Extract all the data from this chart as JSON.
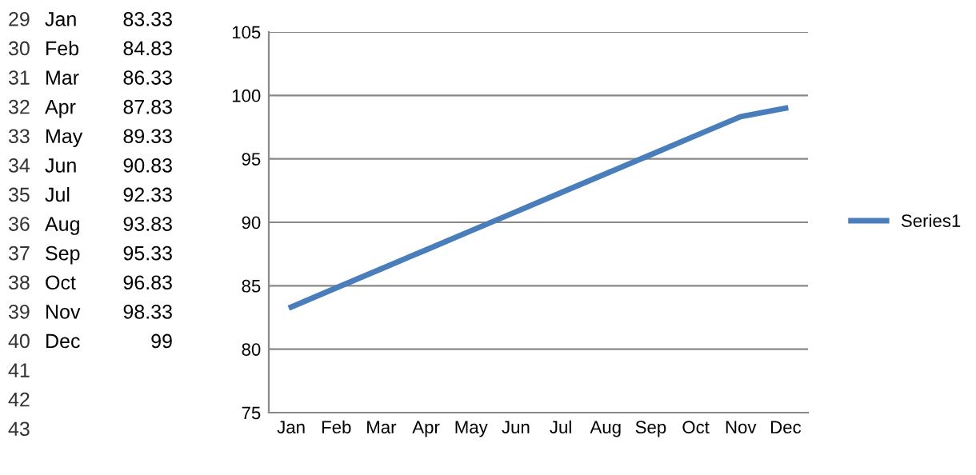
{
  "chart_data": {
    "type": "line",
    "categories": [
      "Jan",
      "Feb",
      "Mar",
      "Apr",
      "May",
      "Jun",
      "Jul",
      "Aug",
      "Sep",
      "Oct",
      "Nov",
      "Dec"
    ],
    "series": [
      {
        "name": "Series1",
        "color": "#4a7ebb",
        "values": [
          83.33,
          84.83,
          86.33,
          87.83,
          89.33,
          90.83,
          92.33,
          93.83,
          95.33,
          96.83,
          98.33,
          99
        ]
      }
    ],
    "ylim": [
      75,
      105
    ],
    "yticks": [
      75,
      80,
      85,
      90,
      95,
      100,
      105
    ],
    "grid": "y",
    "legend": "right",
    "marker": "none",
    "line_style": "solid",
    "annotations": [
      "29",
      "30",
      "31",
      "32",
      "33",
      "34",
      "35",
      "36",
      "37",
      "38",
      "39",
      "40",
      "41",
      "42",
      "43",
      "Jan",
      "Feb",
      "Mar",
      "Apr",
      "May",
      "Jun",
      "Jul",
      "Aug",
      "Sep",
      "Oct",
      "Nov",
      "Dec",
      "83.33",
      "84.83",
      "86.33",
      "87.83",
      "89.33",
      "90.83",
      "92.33",
      "93.83",
      "95.33",
      "96.83",
      "98.33",
      "99"
    ]
  }
}
